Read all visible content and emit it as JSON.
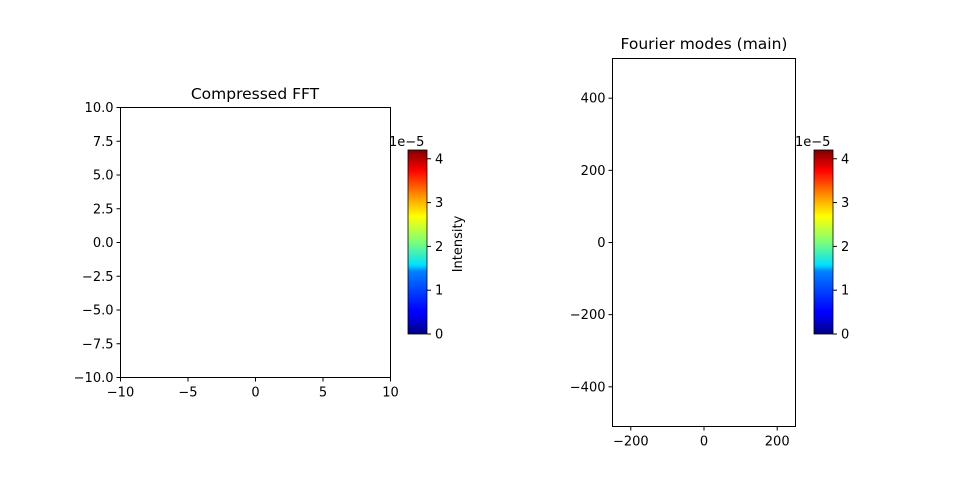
{
  "chart_data": [
    {
      "type": "heatmap",
      "title": "Compressed FFT",
      "xlabel": "",
      "ylabel": "",
      "xlim": [
        -10,
        10
      ],
      "ylim": [
        -10,
        10
      ],
      "xticks": [
        -10,
        -5,
        0,
        5,
        10
      ],
      "xtick_labels": [
        "−10",
        "−5",
        "0",
        "5",
        "10"
      ],
      "yticks": [
        10.0,
        7.5,
        5.0,
        2.5,
        0.0,
        -2.5,
        -5.0,
        -7.5,
        -10.0
      ],
      "ytick_labels": [
        "10.0",
        "7.5",
        "5.0",
        "2.5",
        "0.0",
        "−2.5",
        "−5.0",
        "−7.5",
        "−10.0"
      ],
      "colormap": "jet",
      "colorbar": {
        "label": "Intensity",
        "range": [
          0,
          4.2e-05
        ],
        "ticks": [
          0,
          1,
          2,
          3,
          4
        ],
        "tick_labels": [
          "0",
          "1",
          "2",
          "3",
          "4"
        ],
        "offset_text": "1e−5"
      },
      "values": []
    },
    {
      "type": "heatmap",
      "title": "Fourier modes (main)",
      "xlabel": "",
      "ylabel": "",
      "xlim": [
        -250,
        250
      ],
      "ylim": [
        -510,
        510
      ],
      "xticks": [
        -200,
        0,
        200
      ],
      "xtick_labels": [
        "−200",
        "0",
        "200"
      ],
      "yticks": [
        400,
        200,
        0,
        -200,
        -400
      ],
      "ytick_labels": [
        "400",
        "200",
        "0",
        "−200",
        "−400"
      ],
      "colormap": "jet",
      "colorbar": {
        "label": "",
        "range": [
          0,
          4.2e-05
        ],
        "ticks": [
          0,
          1,
          2,
          3,
          4
        ],
        "tick_labels": [
          "0",
          "1",
          "2",
          "3",
          "4"
        ],
        "offset_text": "1e−5"
      },
      "values": []
    }
  ]
}
